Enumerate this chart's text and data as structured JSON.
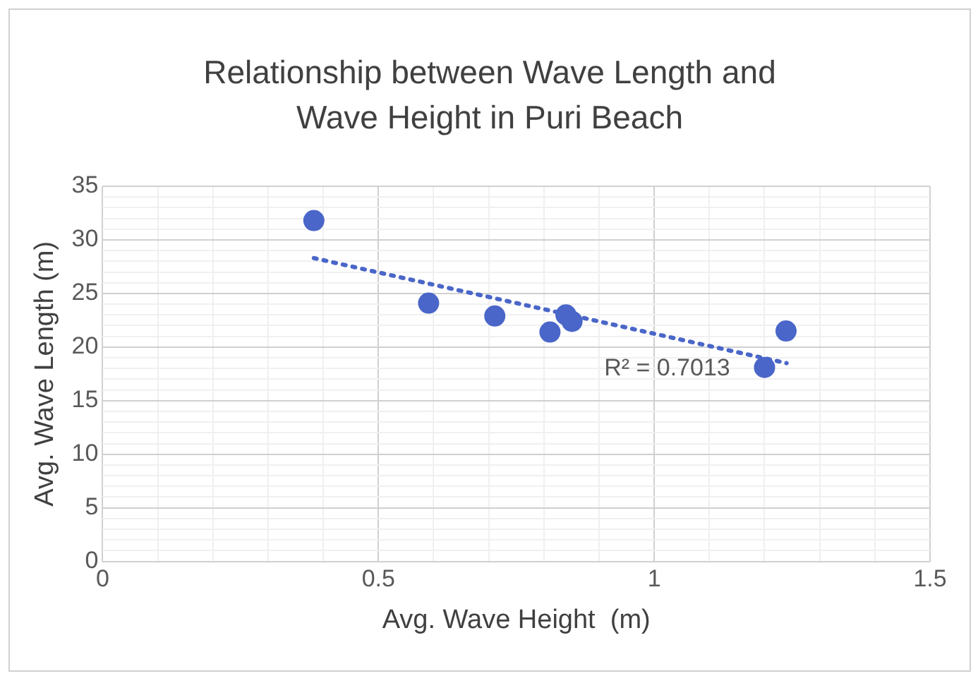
{
  "chart_data": {
    "type": "scatter",
    "title": "Relationship between Wave Length and Wave Height in Puri Beach",
    "xlabel": "Avg. Wave Height  (m)",
    "ylabel": "Avg. Wave Length (m)",
    "series": [
      {
        "type": "scatter",
        "color": "#4a66c8",
        "x": [
          0.383,
          0.591,
          0.711,
          0.811,
          0.84,
          0.851,
          1.2,
          1.239
        ],
        "values": [
          31.8,
          24.1,
          22.9,
          21.4,
          23.0,
          22.4,
          18.1,
          21.5
        ],
        "marker": "circle"
      },
      {
        "type": "line",
        "color": "#4a66c8",
        "x": [
          0.383,
          1.24
        ],
        "values": [
          28.3,
          18.5
        ],
        "line_style": "dotted",
        "marker": "none"
      }
    ],
    "annotations": [
      "R² = 0.7013"
    ],
    "xlim": [
      0,
      1.5
    ],
    "ylim": [
      0,
      35
    ],
    "xticks": [
      0,
      {
        "value": 0.1,
        "label": null
      },
      {
        "value": 0.2,
        "label": null
      },
      {
        "value": 0.3,
        "label": null
      },
      {
        "value": 0.4,
        "label": null
      },
      0.5,
      {
        "value": 0.6,
        "label": null
      },
      {
        "value": 0.7,
        "label": null
      },
      {
        "value": 0.8,
        "label": null
      },
      {
        "value": 0.9,
        "label": null
      },
      1,
      {
        "value": 1.1,
        "label": null
      },
      {
        "value": 1.2,
        "label": null
      },
      {
        "value": 1.3,
        "label": null
      },
      {
        "value": 1.4,
        "label": null
      },
      1.5
    ],
    "yticks": [
      0,
      {
        "value": 1,
        "label": null
      },
      {
        "value": 2,
        "label": null
      },
      {
        "value": 3,
        "label": null
      },
      {
        "value": 4,
        "label": null
      },
      5,
      {
        "value": 6,
        "label": null
      },
      {
        "value": 7,
        "label": null
      },
      {
        "value": 8,
        "label": null
      },
      {
        "value": 9,
        "label": null
      },
      10,
      {
        "value": 11,
        "label": null
      },
      {
        "value": 12,
        "label": null
      },
      {
        "value": 13,
        "label": null
      },
      {
        "value": 14,
        "label": null
      },
      15,
      {
        "value": 16,
        "label": null
      },
      {
        "value": 17,
        "label": null
      },
      {
        "value": 18,
        "label": null
      },
      {
        "value": 19,
        "label": null
      },
      20,
      {
        "value": 21,
        "label": null
      },
      {
        "value": 22,
        "label": null
      },
      {
        "value": 23,
        "label": null
      },
      {
        "value": 24,
        "label": null
      },
      25,
      {
        "value": 26,
        "label": null
      },
      {
        "value": 27,
        "label": null
      },
      {
        "value": 28,
        "label": null
      },
      {
        "value": 29,
        "label": null
      },
      30,
      {
        "value": 31,
        "label": null
      },
      {
        "value": 32,
        "label": null
      },
      {
        "value": 33,
        "label": null
      },
      {
        "value": 34,
        "label": null
      },
      35
    ],
    "grid": true,
    "legend": false
  }
}
